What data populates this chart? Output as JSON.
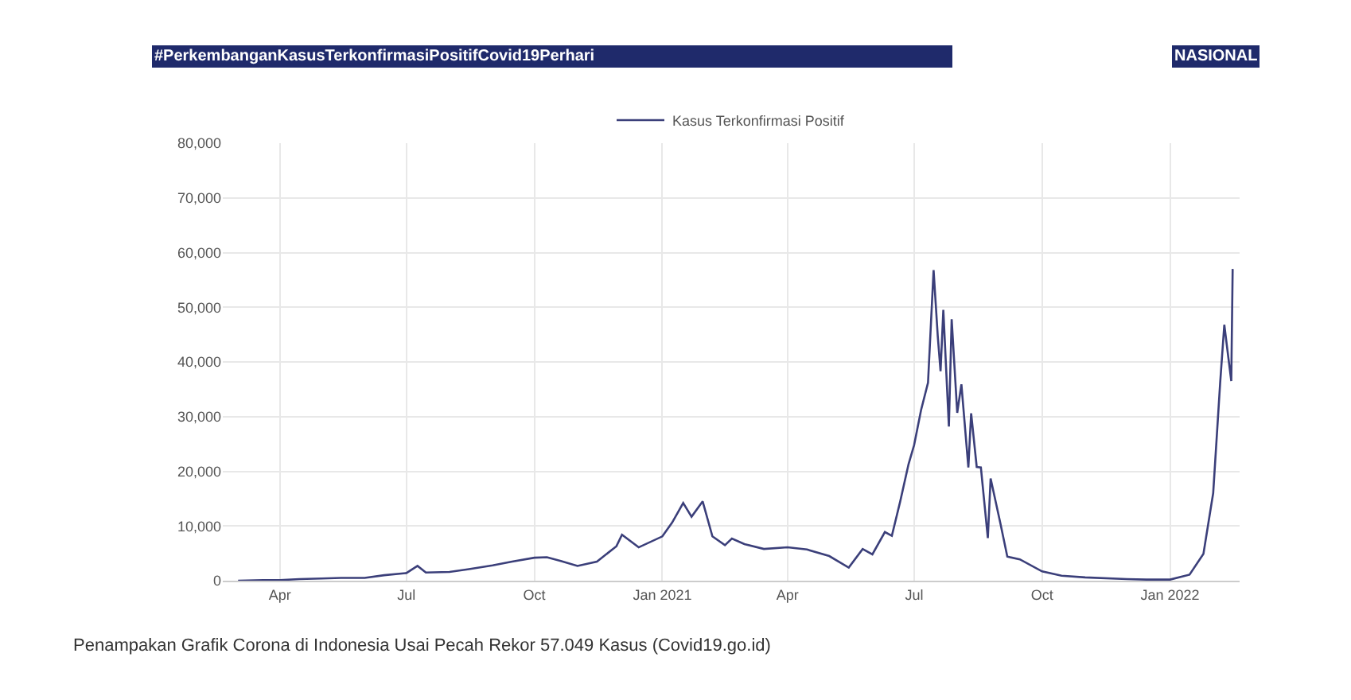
{
  "chart_data": {
    "type": "line",
    "title": "#PerkembanganKasusTerkonfirmasiPositifCovid19Perhari",
    "subtitle": "NASIONAL",
    "x": [
      "2020-03-02",
      "2020-03-20",
      "2020-04-01",
      "2020-04-15",
      "2020-05-01",
      "2020-05-15",
      "2020-06-01",
      "2020-06-15",
      "2020-07-01",
      "2020-07-09",
      "2020-07-15",
      "2020-08-01",
      "2020-08-15",
      "2020-09-01",
      "2020-09-15",
      "2020-10-01",
      "2020-10-10",
      "2020-10-20",
      "2020-11-01",
      "2020-11-15",
      "2020-11-29",
      "2020-12-03",
      "2020-12-15",
      "2021-01-01",
      "2021-01-08",
      "2021-01-16",
      "2021-01-22",
      "2021-01-30",
      "2021-02-06",
      "2021-02-15",
      "2021-02-20",
      "2021-03-01",
      "2021-03-15",
      "2021-04-01",
      "2021-04-15",
      "2021-05-01",
      "2021-05-15",
      "2021-05-25",
      "2021-06-01",
      "2021-06-10",
      "2021-06-15",
      "2021-06-21",
      "2021-06-27",
      "2021-07-01",
      "2021-07-06",
      "2021-07-11",
      "2021-07-15",
      "2021-07-18",
      "2021-07-20",
      "2021-07-22",
      "2021-07-26",
      "2021-07-28",
      "2021-08-01",
      "2021-08-04",
      "2021-08-09",
      "2021-08-11",
      "2021-08-15",
      "2021-08-18",
      "2021-08-23",
      "2021-08-25",
      "2021-09-01",
      "2021-09-06",
      "2021-09-15",
      "2021-10-01",
      "2021-10-15",
      "2021-11-01",
      "2021-12-01",
      "2021-12-15",
      "2022-01-01",
      "2022-01-15",
      "2022-01-25",
      "2022-02-01",
      "2022-02-06",
      "2022-02-09",
      "2022-02-12",
      "2022-02-14",
      "2022-02-15"
    ],
    "series": [
      {
        "name": "Kasus Terkonfirmasi Positif",
        "color": "#3b3f7a",
        "values": [
          0,
          100,
          100,
          300,
          400,
          500,
          500,
          1000,
          1400,
          2700,
          1500,
          1600,
          2100,
          2800,
          3500,
          4200,
          4300,
          3600,
          2700,
          3500,
          6300,
          8400,
          6100,
          8100,
          10600,
          14200,
          11700,
          14500,
          8100,
          6500,
          7700,
          6700,
          5800,
          6100,
          5700,
          4500,
          2400,
          5800,
          4800,
          8900,
          8200,
          14500,
          21300,
          24800,
          31200,
          36200,
          56800,
          44700,
          38300,
          49500,
          28200,
          47800,
          30700,
          35900,
          20700,
          30600,
          20800,
          20700,
          7800,
          18700,
          10500,
          4400,
          3900,
          1700,
          900,
          600,
          300,
          200,
          200,
          1100,
          4900,
          16000,
          36100,
          46800,
          40600,
          36500,
          57000
        ]
      }
    ],
    "xlim": [
      "2020-02-20",
      "2022-02-20"
    ],
    "xticks": [
      {
        "value": "2020-04-01",
        "label": "Apr"
      },
      {
        "value": "2020-07-01",
        "label": "Jul"
      },
      {
        "value": "2020-10-01",
        "label": "Oct"
      },
      {
        "value": "2021-01-01",
        "label": "Jan 2021"
      },
      {
        "value": "2021-04-01",
        "label": "Apr"
      },
      {
        "value": "2021-07-01",
        "label": "Jul"
      },
      {
        "value": "2021-10-01",
        "label": "Oct"
      },
      {
        "value": "2022-01-01",
        "label": "Jan 2022"
      }
    ],
    "ylim": [
      0,
      80000
    ],
    "yticks": [
      0,
      {
        "value": 10000,
        "label": "10,000"
      },
      {
        "value": 20000,
        "label": "20,000"
      },
      {
        "value": 30000,
        "label": "30,000"
      },
      {
        "value": 40000,
        "label": "40,000"
      },
      {
        "value": 50000,
        "label": "50,000"
      },
      {
        "value": 60000,
        "label": "60,000"
      },
      {
        "value": 70000,
        "label": "70,000"
      },
      {
        "value": 80000,
        "label": "80,000"
      }
    ],
    "grid": true,
    "legend": "top",
    "marker": "none",
    "line_style": "solid",
    "annotations": [
      "Penampakan Grafik Corona di Indonesia Usai Pecah Rekor 57.049 Kasus (Covid19.go.id)"
    ]
  }
}
